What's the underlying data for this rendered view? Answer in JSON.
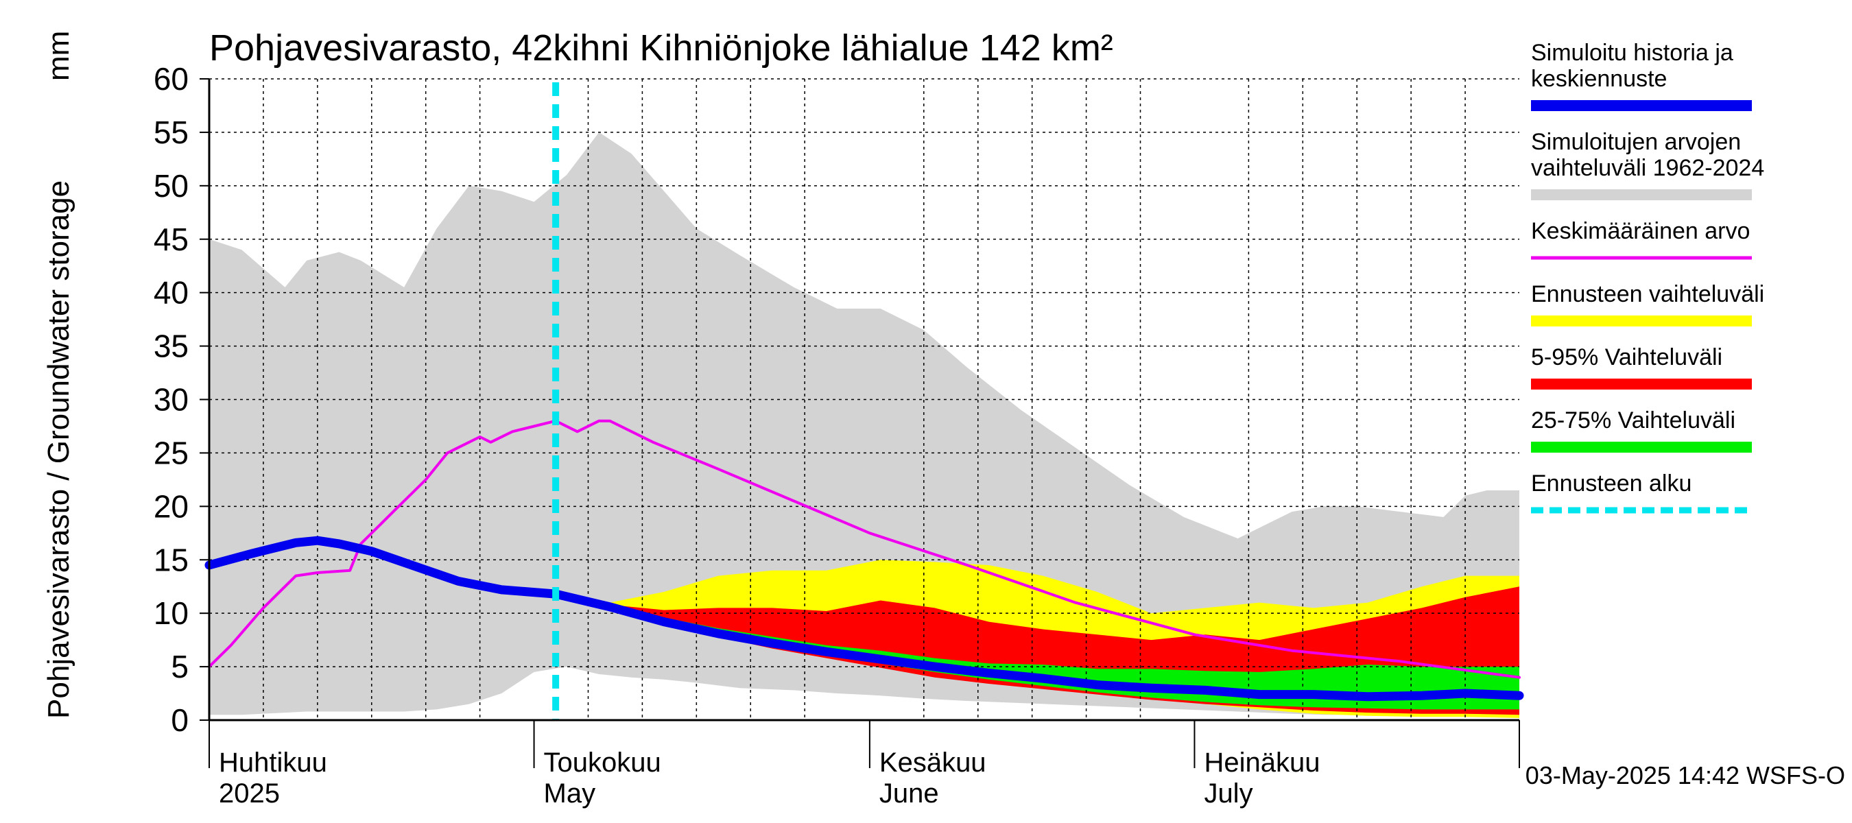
{
  "chart_data": {
    "type": "area",
    "title": "Pohjavesivarasto, 42kihni Kihniönjoke lähialue 142 km²",
    "ylabel": "Pohjavesivarasto / Groundwater storage",
    "ylabel_unit": "mm",
    "ylim": [
      0,
      60
    ],
    "yticks": [
      0,
      5,
      10,
      15,
      20,
      25,
      30,
      35,
      40,
      45,
      50,
      55,
      60
    ],
    "xlim": [
      "2025-04-01",
      "2025-07-31"
    ],
    "month_labels": [
      {
        "date": "2025-04-01",
        "fi": "Huhtikuu",
        "en": "2025"
      },
      {
        "date": "2025-05-01",
        "fi": "Toukokuu",
        "en": "May"
      },
      {
        "date": "2025-06-01",
        "fi": "Kesäkuu",
        "en": "June"
      },
      {
        "date": "2025-07-01",
        "fi": "Heinäkuu",
        "en": "July"
      }
    ],
    "forecast_start": "2025-05-03",
    "footer": "03-May-2025 14:42 WSFS-O",
    "grid": true,
    "legend_position": "right",
    "colors": {
      "history_range": "#d3d3d3",
      "forecast_range": "#ffff00",
      "p5_95": "#ff0000",
      "p25_75": "#00ee00",
      "simulated": "#0000ee",
      "mean": "#ee00ee",
      "forecast_start": "#00e5ee"
    },
    "series": [
      {
        "name": "Simuloitu historia ja keskiennuste",
        "key": "simulated",
        "x": [
          "2025-04-01",
          "2025-04-05",
          "2025-04-09",
          "2025-04-11",
          "2025-04-13",
          "2025-04-16",
          "2025-04-20",
          "2025-04-24",
          "2025-04-28",
          "2025-05-03",
          "2025-05-08",
          "2025-05-13",
          "2025-05-18",
          "2025-05-23",
          "2025-05-28",
          "2025-06-02",
          "2025-06-07",
          "2025-06-12",
          "2025-06-17",
          "2025-06-22",
          "2025-06-27",
          "2025-07-02",
          "2025-07-07",
          "2025-07-12",
          "2025-07-17",
          "2025-07-22",
          "2025-07-26",
          "2025-07-31"
        ],
        "y": [
          14.5,
          15.6,
          16.6,
          16.8,
          16.5,
          15.8,
          14.4,
          13.0,
          12.2,
          11.8,
          10.6,
          9.2,
          8.1,
          7.2,
          6.4,
          5.7,
          5.0,
          4.4,
          3.9,
          3.3,
          3.0,
          2.8,
          2.4,
          2.4,
          2.2,
          2.3,
          2.5,
          2.3
        ]
      },
      {
        "name": "Simuloitujen arvojen vaihteluväli 1962-2024",
        "key": "history_range",
        "x": [
          "2025-04-01",
          "2025-04-04",
          "2025-04-08",
          "2025-04-10",
          "2025-04-13",
          "2025-04-15",
          "2025-04-19",
          "2025-04-22",
          "2025-04-25",
          "2025-04-28",
          "2025-05-01",
          "2025-05-04",
          "2025-05-07",
          "2025-05-10",
          "2025-05-13",
          "2025-05-16",
          "2025-05-20",
          "2025-05-25",
          "2025-05-29",
          "2025-06-02",
          "2025-06-06",
          "2025-06-10",
          "2025-06-15",
          "2025-06-20",
          "2025-06-25",
          "2025-06-30",
          "2025-07-05",
          "2025-07-10",
          "2025-07-13",
          "2025-07-16",
          "2025-07-20",
          "2025-07-24",
          "2025-07-26",
          "2025-07-28",
          "2025-07-31"
        ],
        "high": [
          45,
          44,
          40.5,
          43,
          43.8,
          43,
          40.5,
          46,
          50,
          49.5,
          48.5,
          51,
          55,
          53,
          49.5,
          46,
          43.5,
          40.5,
          38.5,
          38.5,
          36.5,
          33,
          29,
          25.5,
          22,
          19,
          17,
          19.5,
          20,
          20,
          19.5,
          19,
          21,
          21.5,
          21.5
        ],
        "low": [
          0.5,
          0.5,
          0.7,
          0.8,
          0.8,
          0.8,
          0.8,
          1.0,
          1.5,
          2.5,
          4.5,
          5,
          4.3,
          4.0,
          3.8,
          3.5,
          3.0,
          2.8,
          2.5,
          2.3,
          2.0,
          1.8,
          1.6,
          1.4,
          1.2,
          1.0,
          0.8,
          0.6,
          0.5,
          0.5,
          0.5,
          0.5,
          0.5,
          0.5,
          0.5
        ]
      },
      {
        "name": "Keskimääräinen arvo",
        "key": "mean",
        "x": [
          "2025-04-01",
          "2025-04-03",
          "2025-04-06",
          "2025-04-09",
          "2025-04-11",
          "2025-04-14",
          "2025-04-15",
          "2025-04-17",
          "2025-04-18",
          "2025-04-20",
          "2025-04-21",
          "2025-04-23",
          "2025-04-24",
          "2025-04-26",
          "2025-04-27",
          "2025-04-29",
          "2025-05-01",
          "2025-05-03",
          "2025-05-05",
          "2025-05-07",
          "2025-05-08",
          "2025-05-12",
          "2025-05-18",
          "2025-05-25",
          "2025-06-01",
          "2025-06-10",
          "2025-06-20",
          "2025-07-01",
          "2025-07-10",
          "2025-07-20",
          "2025-07-31"
        ],
        "y": [
          5,
          7,
          10.5,
          13.5,
          13.8,
          14,
          16.5,
          18.5,
          19.5,
          21.5,
          22.5,
          25,
          25.5,
          26.5,
          26,
          27,
          27.5,
          28,
          27,
          28,
          28,
          26,
          23.5,
          20.5,
          17.5,
          14.5,
          11,
          8,
          6.5,
          5.5,
          4
        ]
      },
      {
        "name": "Ennusteen vaihteluväli",
        "key": "forecast_range",
        "x": [
          "2025-05-03",
          "2025-05-08",
          "2025-05-13",
          "2025-05-18",
          "2025-05-23",
          "2025-05-28",
          "2025-06-02",
          "2025-06-07",
          "2025-06-12",
          "2025-06-17",
          "2025-06-22",
          "2025-06-27",
          "2025-07-02",
          "2025-07-07",
          "2025-07-12",
          "2025-07-17",
          "2025-07-22",
          "2025-07-26",
          "2025-07-31"
        ],
        "high": [
          11.8,
          11,
          12,
          13.5,
          14,
          14,
          15,
          14.8,
          14.5,
          13.5,
          12,
          10,
          10.5,
          11,
          10.5,
          11,
          12.5,
          13.5,
          13.5
        ],
        "low": [
          11.8,
          10.5,
          9,
          7.8,
          6.8,
          6,
          5.2,
          4.4,
          3.8,
          3.2,
          2.6,
          2.0,
          1.5,
          1.0,
          0.6,
          0.4,
          0.3,
          0.3,
          0.2
        ]
      },
      {
        "name": "5-95% Vaihteluväli",
        "key": "p5_95",
        "x": [
          "2025-05-03",
          "2025-05-08",
          "2025-05-13",
          "2025-05-18",
          "2025-05-23",
          "2025-05-28",
          "2025-06-02",
          "2025-06-07",
          "2025-06-12",
          "2025-06-17",
          "2025-06-22",
          "2025-06-27",
          "2025-07-02",
          "2025-07-07",
          "2025-07-12",
          "2025-07-17",
          "2025-07-22",
          "2025-07-26",
          "2025-07-31"
        ],
        "high": [
          11.8,
          10.8,
          10.3,
          10.5,
          10.5,
          10.2,
          11.2,
          10.5,
          9.2,
          8.5,
          8,
          7.5,
          8,
          7.5,
          8.5,
          9.5,
          10.5,
          11.5,
          12.5
        ],
        "low": [
          11.8,
          10.5,
          9,
          7.8,
          6.7,
          5.8,
          4.9,
          4.0,
          3.4,
          2.9,
          2.4,
          1.9,
          1.5,
          1.2,
          0.9,
          0.7,
          0.6,
          0.6,
          0.5
        ]
      },
      {
        "name": "25-75% Vaihteluväli",
        "key": "p25_75",
        "x": [
          "2025-05-03",
          "2025-05-08",
          "2025-05-13",
          "2025-05-18",
          "2025-05-23",
          "2025-05-28",
          "2025-06-02",
          "2025-06-07",
          "2025-06-12",
          "2025-06-17",
          "2025-06-22",
          "2025-06-27",
          "2025-07-02",
          "2025-07-07",
          "2025-07-12",
          "2025-07-17",
          "2025-07-22",
          "2025-07-26",
          "2025-07-31"
        ],
        "high": [
          11.8,
          10.7,
          9.6,
          8.6,
          7.8,
          7.0,
          6.5,
          5.8,
          5.3,
          5.2,
          4.8,
          4.8,
          4.6,
          4.5,
          4.8,
          5.2,
          5.0,
          5.0,
          5.0
        ],
        "low": [
          11.8,
          10.5,
          9,
          7.9,
          6.9,
          6.1,
          5.3,
          4.5,
          3.8,
          3.2,
          2.6,
          2.1,
          1.7,
          1.4,
          1.2,
          1.1,
          1.0,
          1.0,
          1.0
        ]
      },
      {
        "name": "Ennusteen alku",
        "key": "forecast_start"
      }
    ]
  }
}
